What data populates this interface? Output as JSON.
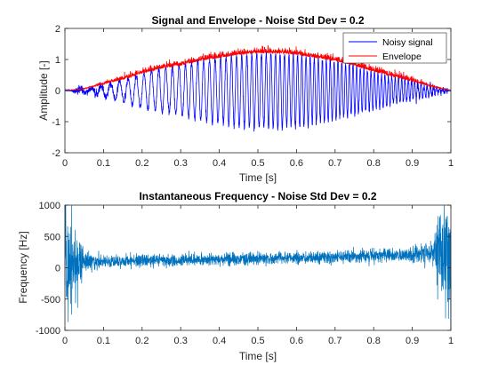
{
  "figure": {
    "background": "#ffffff"
  },
  "chart_data": [
    {
      "type": "line",
      "title": "Signal and Envelope - Noise Std Dev = 0.2",
      "xlabel": "Time [s]",
      "ylabel": "Amplitude [-]",
      "xlim": [
        0,
        1
      ],
      "ylim": [
        -2,
        2
      ],
      "xticks": [
        0,
        0.1,
        0.2,
        0.3,
        0.4,
        0.5,
        0.6,
        0.7,
        0.8,
        0.9,
        1
      ],
      "yticks": [
        -2,
        -1,
        0,
        1,
        2
      ],
      "xtick_labels": [
        "0",
        "0.1",
        "0.2",
        "0.3",
        "0.4",
        "0.5",
        "0.6",
        "0.7",
        "0.8",
        "0.9",
        "1"
      ],
      "ytick_labels": [
        "-2",
        "-1",
        "0",
        "1",
        "2"
      ],
      "grid": false,
      "legend": {
        "position": "top-right",
        "entries": [
          "Noisy signal",
          "Envelope"
        ]
      },
      "series": [
        {
          "name": "Noisy signal",
          "color": "#0000ff",
          "description_values": {
            "t": [
              0,
              0.05,
              0.1,
              0.15,
              0.2,
              0.25,
              0.3,
              0.35,
              0.4,
              0.45,
              0.5,
              0.55,
              0.6,
              0.65,
              0.7,
              0.75,
              0.8,
              0.85,
              0.9,
              0.95,
              1
            ],
            "peak_amplitude": [
              0.0,
              0.05,
              0.2,
              0.35,
              0.55,
              0.7,
              0.8,
              0.95,
              1.05,
              1.15,
              1.2,
              1.2,
              1.15,
              1.05,
              0.95,
              0.8,
              0.6,
              0.45,
              0.3,
              0.12,
              0.0
            ]
          }
        },
        {
          "name": "Envelope",
          "color": "#ff0000",
          "description_values": {
            "t": [
              0,
              0.05,
              0.1,
              0.15,
              0.2,
              0.25,
              0.3,
              0.35,
              0.4,
              0.45,
              0.5,
              0.55,
              0.6,
              0.65,
              0.7,
              0.75,
              0.8,
              0.85,
              0.9,
              0.95,
              1
            ],
            "envelope": [
              0.0,
              0.05,
              0.2,
              0.35,
              0.55,
              0.7,
              0.8,
              0.95,
              1.05,
              1.15,
              1.2,
              1.2,
              1.15,
              1.05,
              0.95,
              0.8,
              0.6,
              0.45,
              0.3,
              0.12,
              0.0
            ]
          }
        }
      ]
    },
    {
      "type": "line",
      "title": "Instantaneous Frequency - Noise Std Dev = 0.2",
      "xlabel": "Time [s]",
      "ylabel": "Frequency [Hz]",
      "xlim": [
        0,
        1
      ],
      "ylim": [
        -1000,
        1000
      ],
      "xticks": [
        0,
        0.1,
        0.2,
        0.3,
        0.4,
        0.5,
        0.6,
        0.7,
        0.8,
        0.9,
        1
      ],
      "yticks": [
        -1000,
        -500,
        0,
        500,
        1000
      ],
      "xtick_labels": [
        "0",
        "0.1",
        "0.2",
        "0.3",
        "0.4",
        "0.5",
        "0.6",
        "0.7",
        "0.8",
        "0.9",
        "1"
      ],
      "ytick_labels": [
        "-1000",
        "-500",
        "0",
        "500",
        "1000"
      ],
      "grid": false,
      "series": [
        {
          "color": "#0072bd",
          "description_values": {
            "t": [
              0,
              0.02,
              0.05,
              0.1,
              0.2,
              0.3,
              0.4,
              0.5,
              0.6,
              0.7,
              0.8,
              0.9,
              0.95,
              0.98,
              1
            ],
            "mean_frequency": [
              0,
              50,
              90,
              100,
              110,
              120,
              130,
              150,
              160,
              170,
              190,
              210,
              230,
              250,
              0
            ],
            "spread": [
              1000,
              500,
              150,
              80,
              80,
              80,
              80,
              80,
              80,
              80,
              90,
              100,
              150,
              600,
              1000
            ]
          }
        }
      ]
    }
  ]
}
